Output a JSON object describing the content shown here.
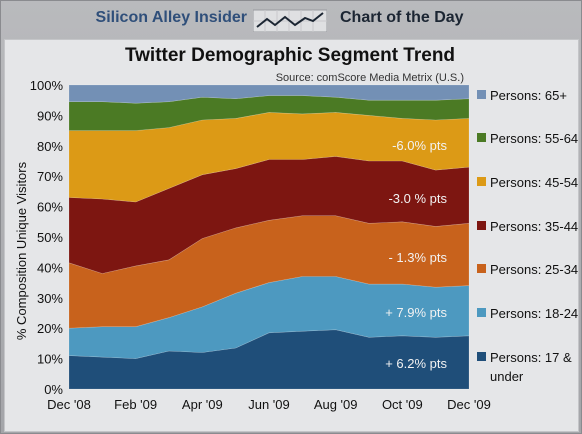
{
  "header": {
    "left_brand": "Silicon Alley Insider",
    "right_brand": "Chart of the Day",
    "icon": "trend-line-icon"
  },
  "chart_data": {
    "type": "area",
    "stacked": true,
    "title": "Twitter Demographic Segment Trend",
    "source": "Source: comScore Media Metrix (U.S.)",
    "ylabel": "% Composition Unique Visitors",
    "xlabel": "",
    "ylim": [
      0,
      100
    ],
    "yticks": [
      "0%",
      "10%",
      "20%",
      "30%",
      "40%",
      "50%",
      "60%",
      "70%",
      "80%",
      "90%",
      "100%"
    ],
    "x": [
      "Dec '08",
      "Jan '09",
      "Feb '09",
      "Mar '09",
      "Apr '09",
      "May '09",
      "Jun '09",
      "Jul '09",
      "Aug '09",
      "Sep '09",
      "Oct '09",
      "Nov '09",
      "Dec '09"
    ],
    "xtick_labels": [
      "Dec '08",
      "Feb '09",
      "Apr '09",
      "Jun '09",
      "Aug '09",
      "Oct '09",
      "Dec '09"
    ],
    "legend_position": "right",
    "grid": false,
    "series": [
      {
        "name": "Persons: 17 & under",
        "color": "#1f4e79",
        "values": [
          11,
          10.5,
          10,
          12.5,
          12,
          13.5,
          18.5,
          19,
          19.5,
          17,
          17.5,
          17,
          17.5
        ]
      },
      {
        "name": "Persons: 18-24",
        "color": "#4d99c0",
        "values": [
          9,
          10,
          10.5,
          11,
          15,
          18,
          16.5,
          18,
          17.5,
          17.5,
          17,
          16.5,
          16.5
        ]
      },
      {
        "name": "Persons: 25-34",
        "color": "#c8621c",
        "values": [
          21.5,
          17.5,
          20,
          19,
          22.5,
          21.5,
          20.5,
          20,
          20,
          20,
          20.5,
          20,
          20.5
        ]
      },
      {
        "name": "Persons: 35-44",
        "color": "#7d1611",
        "values": [
          21.5,
          24.5,
          21,
          23.5,
          21,
          19.5,
          20,
          18.5,
          19.5,
          20.5,
          20,
          18.5,
          18.5
        ]
      },
      {
        "name": "Persons: 45-54",
        "color": "#dc9a16",
        "values": [
          22,
          22.5,
          23.5,
          20,
          18,
          16.5,
          15.5,
          15,
          14.5,
          15,
          14,
          16.5,
          16
        ]
      },
      {
        "name": "Persons: 55-64",
        "color": "#4b7a24",
        "values": [
          9.5,
          9.5,
          9,
          8.5,
          7.5,
          6.5,
          5.5,
          6,
          5,
          5,
          6,
          6.5,
          6.5
        ]
      },
      {
        "name": "Persons: 65+",
        "color": "#7390b5",
        "values": [
          5.5,
          5.5,
          6,
          5.5,
          4,
          4.5,
          3.5,
          3.5,
          4,
          5,
          5,
          4.5,
          4.5
        ]
      }
    ],
    "annotations": [
      "-6.0% pts",
      "-3.0 % pts",
      "- 1.3% pts",
      "+ 7.9% pts",
      "+ 6.2% pts"
    ]
  }
}
